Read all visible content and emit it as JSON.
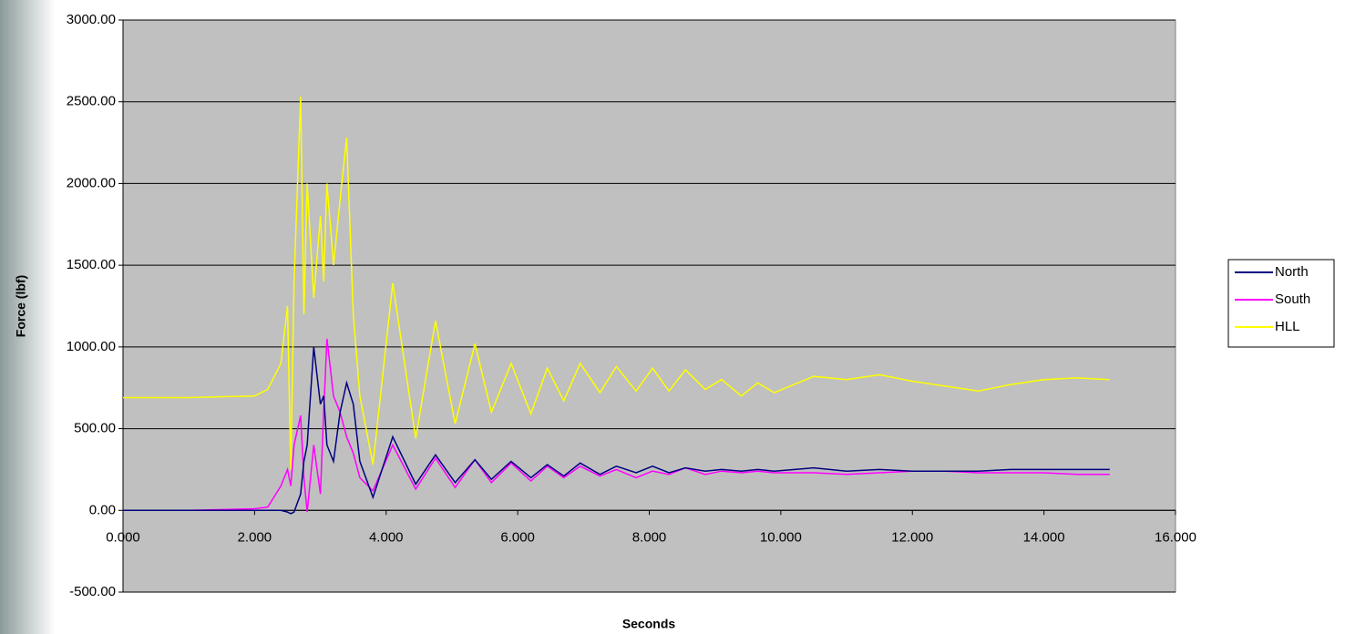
{
  "chart_data": {
    "type": "line",
    "x_label": "Seconds",
    "y_label": "Force (lbf)",
    "xlim": [
      0,
      16
    ],
    "ylim": [
      -500,
      3000
    ],
    "xticks": [
      {
        "value": 0,
        "label": "0.000"
      },
      {
        "value": 2,
        "label": "2.000"
      },
      {
        "value": 4,
        "label": "4.000"
      },
      {
        "value": 6,
        "label": "6.000"
      },
      {
        "value": 8,
        "label": "8.000"
      },
      {
        "value": 10,
        "label": "10.000"
      },
      {
        "value": 12,
        "label": "12.000"
      },
      {
        "value": 14,
        "label": "14.000"
      },
      {
        "value": 16,
        "label": "16.000"
      }
    ],
    "yticks": [
      {
        "value": -500,
        "label": "-500.00"
      },
      {
        "value": 0,
        "label": "0.00"
      },
      {
        "value": 500,
        "label": "500.00"
      },
      {
        "value": 1000,
        "label": "1000.00"
      },
      {
        "value": 1500,
        "label": "1500.00"
      },
      {
        "value": 2000,
        "label": "2000.00"
      },
      {
        "value": 2500,
        "label": "2500.00"
      },
      {
        "value": 3000,
        "label": "3000.00"
      }
    ],
    "grid": true,
    "legend": "right",
    "x": [
      0,
      1,
      2,
      2.2,
      2.4,
      2.5,
      2.55,
      2.6,
      2.7,
      2.75,
      2.8,
      2.9,
      3.0,
      3.05,
      3.1,
      3.2,
      3.3,
      3.4,
      3.5,
      3.6,
      3.8,
      4.1,
      4.45,
      4.75,
      5.05,
      5.35,
      5.6,
      5.9,
      6.2,
      6.45,
      6.7,
      6.95,
      7.25,
      7.5,
      7.8,
      8.05,
      8.3,
      8.55,
      8.85,
      9.1,
      9.4,
      9.65,
      9.9,
      10.5,
      11.0,
      11.5,
      12.0,
      12.5,
      13.0,
      13.5,
      14.0,
      14.5,
      15.0
    ],
    "series": [
      {
        "name": "North",
        "color": "#000080",
        "values": [
          0,
          0,
          0,
          0,
          0,
          -10,
          -20,
          -10,
          100,
          300,
          400,
          1000,
          650,
          700,
          400,
          300,
          600,
          780,
          650,
          300,
          80,
          450,
          160,
          340,
          170,
          310,
          190,
          300,
          200,
          280,
          210,
          290,
          220,
          270,
          230,
          270,
          230,
          260,
          240,
          250,
          240,
          250,
          240,
          260,
          240,
          250,
          240,
          240,
          240,
          250,
          250,
          250,
          250
        ]
      },
      {
        "name": "South",
        "color": "#ff00ff",
        "values": [
          0,
          0,
          10,
          20,
          150,
          250,
          150,
          400,
          580,
          200,
          -10,
          400,
          100,
          600,
          1050,
          700,
          600,
          450,
          350,
          200,
          120,
          400,
          130,
          320,
          140,
          310,
          170,
          290,
          180,
          270,
          200,
          270,
          210,
          250,
          200,
          240,
          220,
          260,
          220,
          240,
          230,
          240,
          230,
          230,
          220,
          230,
          240,
          240,
          230,
          230,
          230,
          220,
          220
        ]
      },
      {
        "name": "HLL",
        "color": "#ffff00",
        "values": [
          690,
          690,
          700,
          740,
          900,
          1250,
          250,
          1400,
          2530,
          1200,
          2000,
          1300,
          1800,
          1400,
          2000,
          1500,
          1900,
          2280,
          1200,
          700,
          280,
          1390,
          440,
          1160,
          530,
          1020,
          600,
          900,
          590,
          870,
          670,
          900,
          720,
          880,
          730,
          870,
          730,
          860,
          740,
          800,
          700,
          780,
          720,
          820,
          800,
          830,
          790,
          760,
          730,
          770,
          800,
          810,
          800
        ]
      }
    ]
  }
}
